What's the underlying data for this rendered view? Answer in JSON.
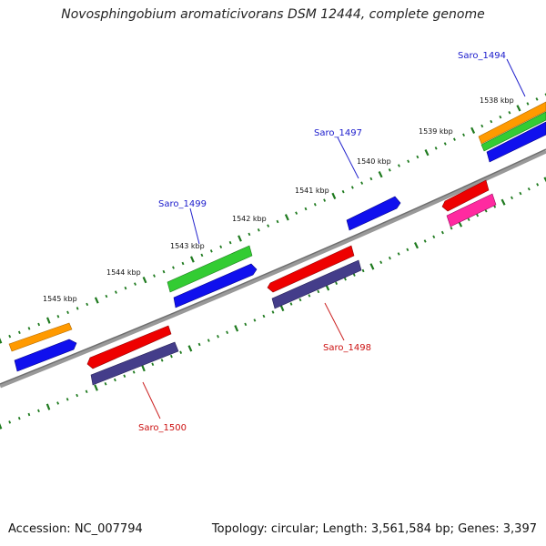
{
  "title": "Novosphingobium aromaticivorans DSM 12444, complete genome",
  "footer": {
    "accession": "Accession: NC_007794",
    "summary": "Topology: circular; Length: 3,561,584 bp; Genes: 3,397"
  },
  "ruler": {
    "labels": [
      "1538 kbp",
      "1539 kbp",
      "1540 kbp",
      "1541 kbp",
      "1542 kbp",
      "1543 kbp",
      "1544 kbp",
      "1545 kbp"
    ]
  },
  "genes": {
    "forward": [
      {
        "label": "Saro_1494",
        "color": "#0000cc"
      },
      {
        "label": "Saro_1497",
        "color": "#0000cc"
      },
      {
        "label": "Saro_1499",
        "color": "#0000cc"
      }
    ],
    "reverse": [
      {
        "label": "Saro_1498",
        "color": "#cc0000"
      },
      {
        "label": "Saro_1500",
        "color": "#cc0000"
      }
    ]
  },
  "colors": {
    "backbone": "#888888",
    "tick": "#1e7a1e",
    "cds_blue": "#1010ee",
    "gene_orange": "#ff9900",
    "gene_green": "#33cc33",
    "gene_red": "#ee0000",
    "gene_pink": "#ff2aa0",
    "gene_purple": "#443d8a",
    "label_blue": "#1a1acc",
    "label_red": "#cc1111"
  }
}
